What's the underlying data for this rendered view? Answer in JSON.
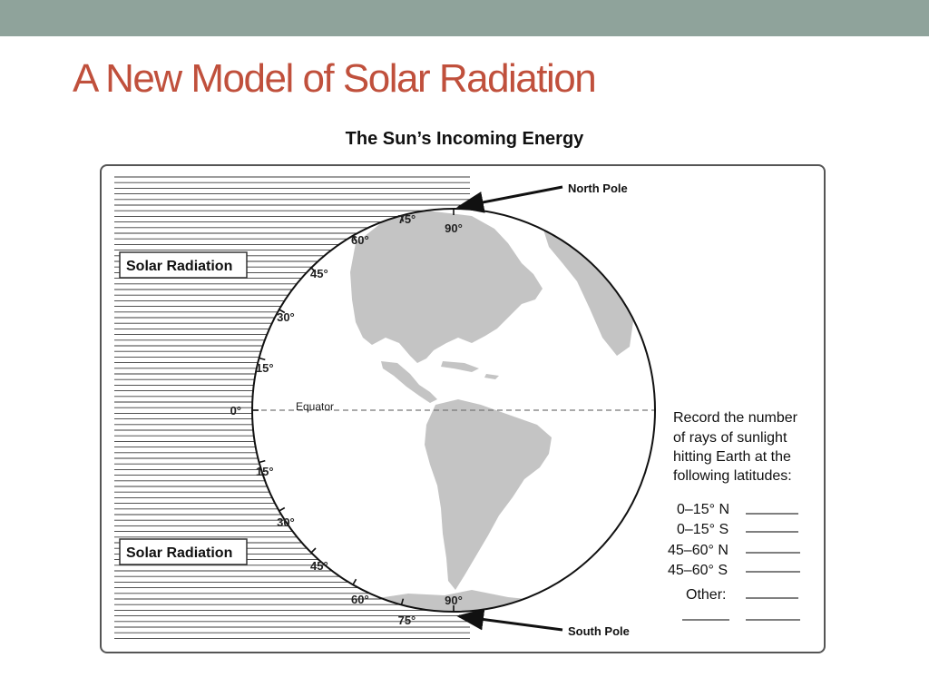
{
  "slide": {
    "title": "A New Model of Solar Radiation"
  },
  "figure": {
    "title": "The Sun’s Incoming Energy",
    "solar_radiation_label_top": "Solar Radiation",
    "solar_radiation_label_bottom": "Solar Radiation",
    "north_pole_label": "North Pole",
    "south_pole_label": "South Pole",
    "equator_label": "Equator",
    "latitudes_north": [
      "0°",
      "15°",
      "30°",
      "45°",
      "60°",
      "75°",
      "90°"
    ],
    "latitudes_south": [
      "15°",
      "30°",
      "45°",
      "60°",
      "75°",
      "90°"
    ],
    "instructions": [
      "Record the number",
      "of rays of sunlight",
      "hitting Earth at the",
      "following latitudes:"
    ],
    "record_rows": [
      {
        "label": "0–15° N"
      },
      {
        "label": "0–15° S"
      },
      {
        "label": "45–60° N"
      },
      {
        "label": "45–60° S"
      },
      {
        "label": "Other:"
      }
    ]
  },
  "colors": {
    "top_bar": "#8fa39b",
    "title": "#c0503c",
    "land": "#c4c4c4"
  }
}
